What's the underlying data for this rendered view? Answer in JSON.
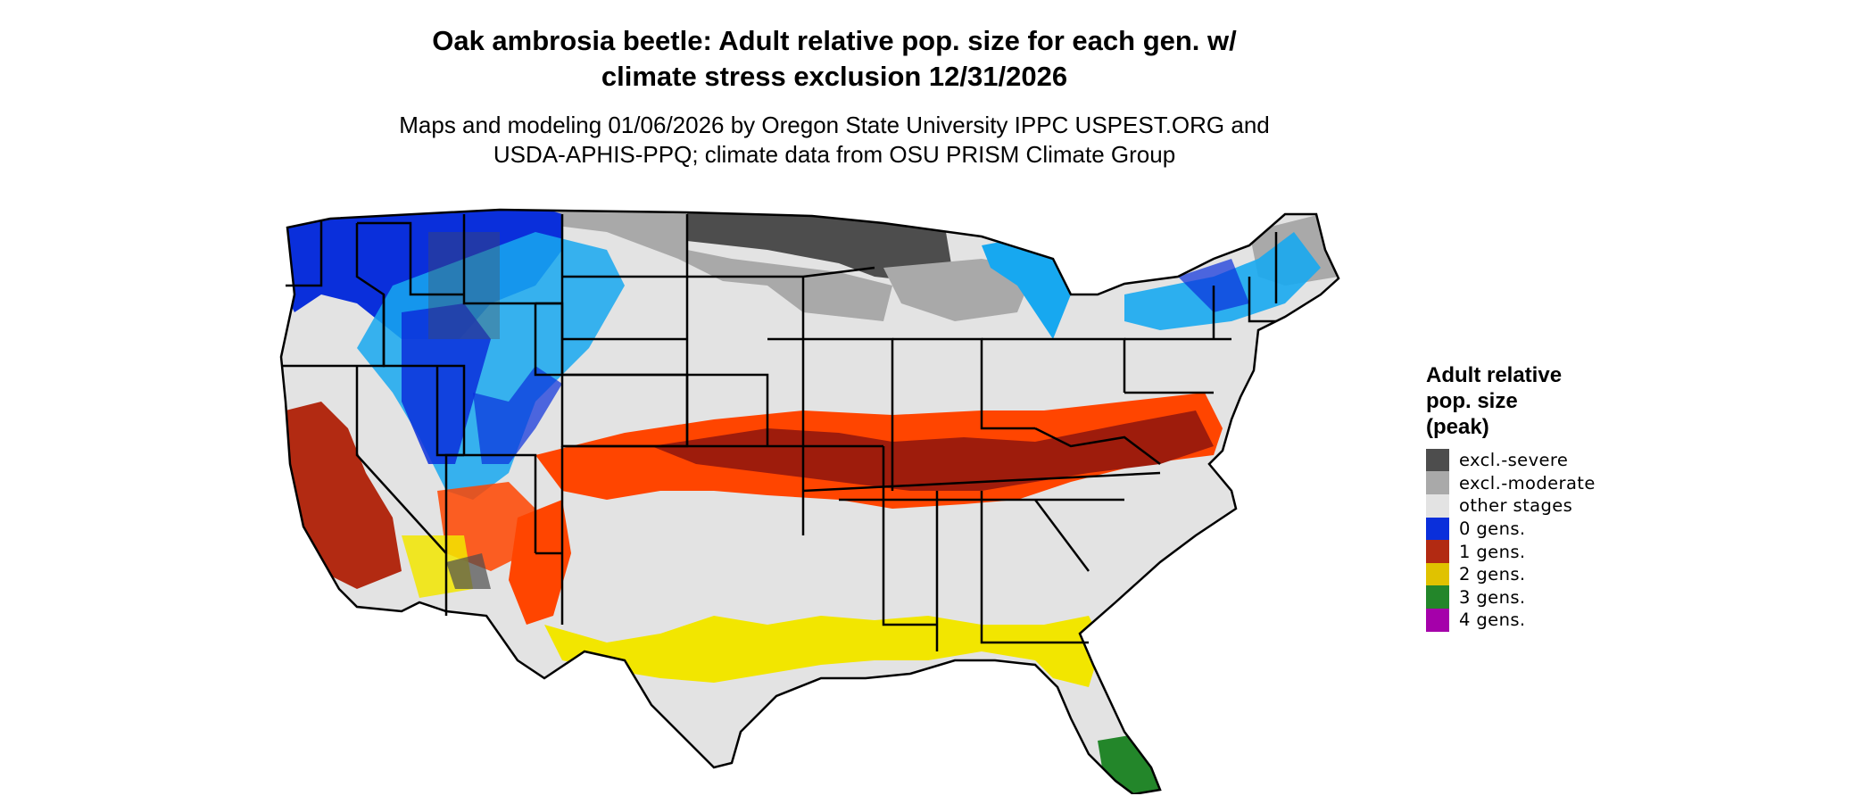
{
  "header": {
    "title_line1": "Oak ambrosia beetle: Adult relative pop. size for each gen. w/",
    "title_line2": "climate stress exclusion 12/31/2026",
    "subtitle_line1": "Maps and modeling 01/06/2026 by Oregon State University IPPC USPEST.ORG and",
    "subtitle_line2": "USDA-APHIS-PPQ; climate data from OSU PRISM Climate Group"
  },
  "legend": {
    "title_line1": "Adult relative",
    "title_line2": "pop. size",
    "title_line3": "(peak)",
    "items": [
      {
        "label": "excl.-severe",
        "color": "#4d4d4d"
      },
      {
        "label": "excl.-moderate",
        "color": "#a9a9a9"
      },
      {
        "label": "other stages",
        "color": "#e3e3e3"
      },
      {
        "label": "0 gens.",
        "color": "#0a2fdb"
      },
      {
        "label": "1 gens.",
        "color": "#b22a12"
      },
      {
        "label": "2 gens.",
        "color": "#e0c200"
      },
      {
        "label": "3 gens.",
        "color": "#23862a"
      },
      {
        "label": "4 gens.",
        "color": "#a500aa"
      }
    ]
  },
  "map_colors": {
    "background_land": "#e3e3e3",
    "excl_severe": "#4d4d4d",
    "excl_moderate": "#a9a9a9",
    "zero_gens_dark": "#0a2fdb",
    "zero_gens_light": "#17a8f0",
    "one_gen_dark": "#9e1c0c",
    "one_gen_bright": "#ff4500",
    "two_gens": "#f2e600",
    "three_gens": "#23862a",
    "borders": "#000000"
  }
}
